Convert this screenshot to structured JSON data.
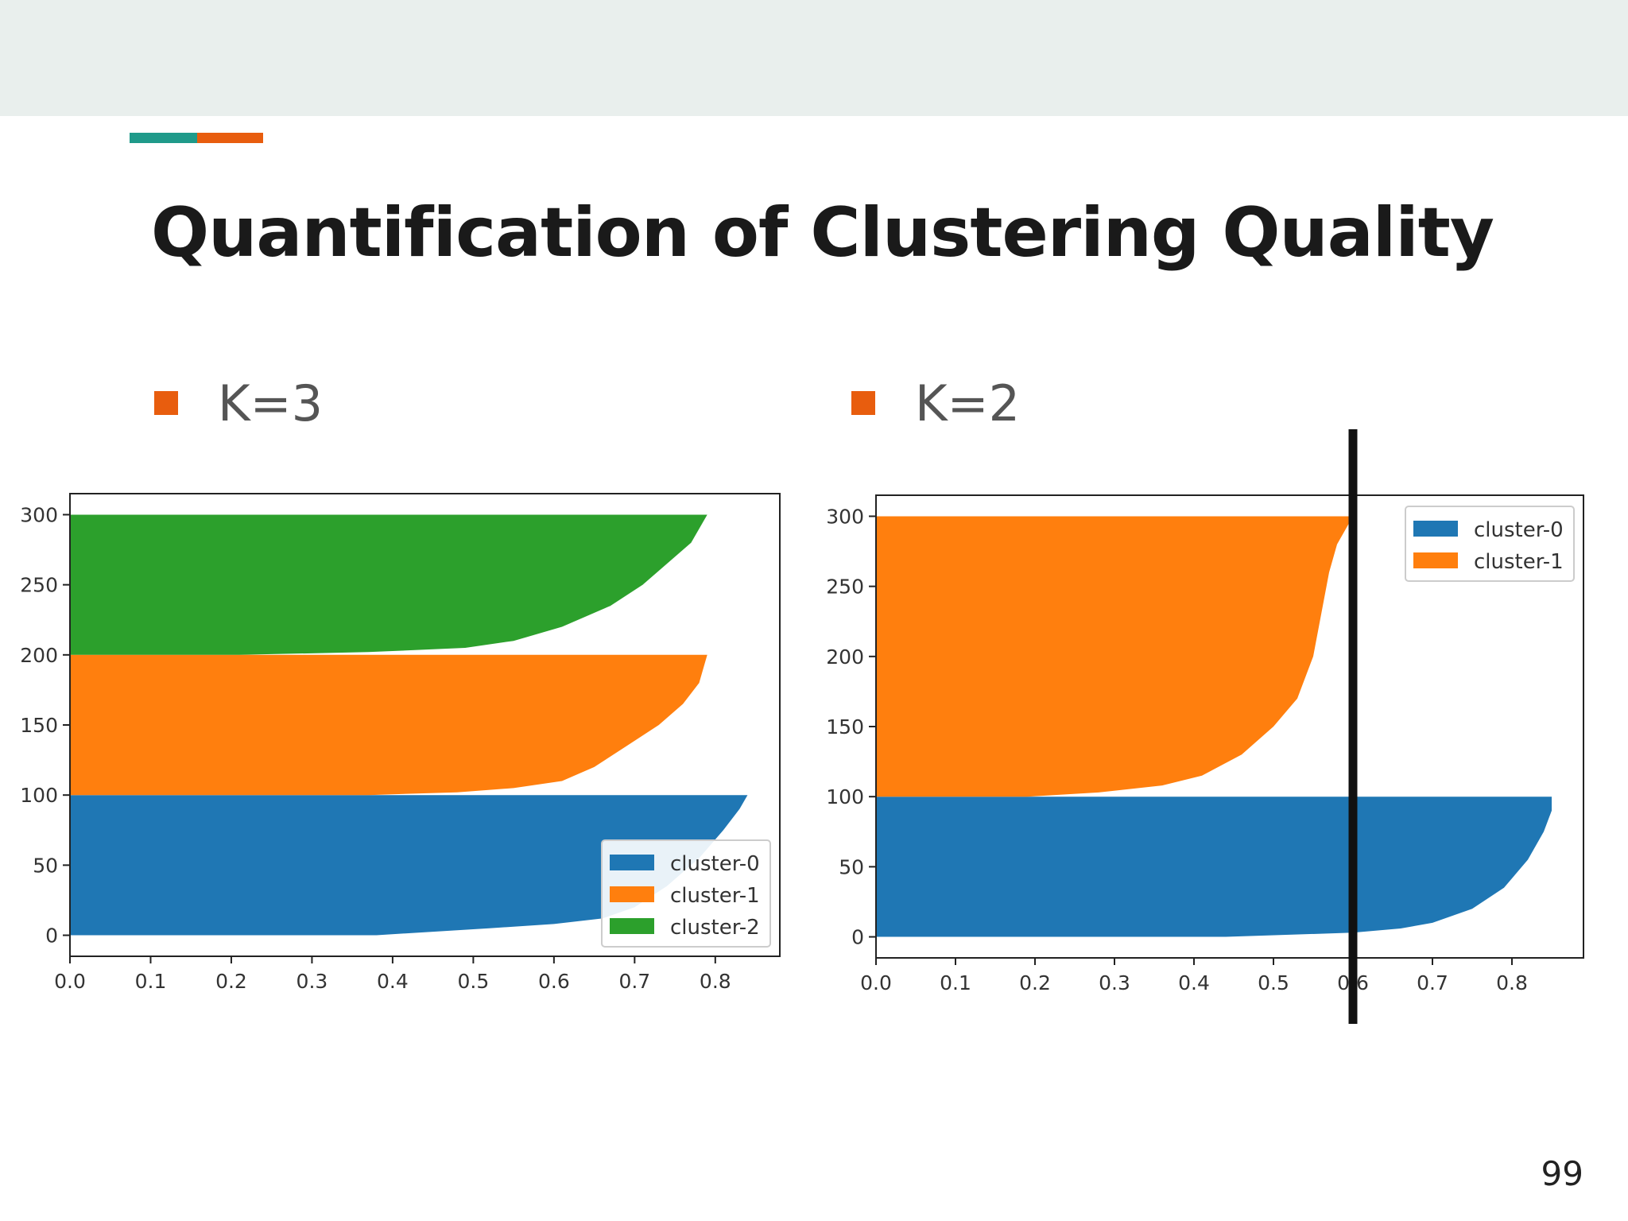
{
  "slide": {
    "title": "Quantification of Clustering Quality",
    "page_number": "99",
    "accent_colors": [
      "#1f9a8a",
      "#e85d0e"
    ],
    "bullets": [
      {
        "label": "K=3",
        "color": "#e85d0e"
      },
      {
        "label": "K=2",
        "color": "#e85d0e"
      }
    ]
  },
  "chart_data": [
    {
      "type": "bar",
      "orientation": "horizontal-silhouette",
      "xlim": [
        0,
        0.88
      ],
      "ylim": [
        -15,
        315
      ],
      "xticks": [
        "0.0",
        "0.1",
        "0.2",
        "0.3",
        "0.4",
        "0.5",
        "0.6",
        "0.7",
        "0.8"
      ],
      "yticks": [
        "0",
        "50",
        "100",
        "150",
        "200",
        "250",
        "300"
      ],
      "legend": {
        "position": "lower-right",
        "entries": [
          "cluster-0",
          "cluster-1",
          "cluster-2"
        ]
      },
      "series": [
        {
          "name": "cluster-0",
          "color": "#1f77b4",
          "profile": [
            [
              0,
              0.0
            ],
            [
              0,
              0.38
            ],
            [
              5,
              0.52
            ],
            [
              8,
              0.6
            ],
            [
              12,
              0.66
            ],
            [
              20,
              0.7
            ],
            [
              35,
              0.74
            ],
            [
              55,
              0.78
            ],
            [
              75,
              0.81
            ],
            [
              90,
              0.83
            ],
            [
              100,
              0.84
            ]
          ]
        },
        {
          "name": "cluster-1",
          "color": "#ff7f0e",
          "profile": [
            [
              100,
              0.0
            ],
            [
              100,
              0.37
            ],
            [
              102,
              0.48
            ],
            [
              105,
              0.55
            ],
            [
              110,
              0.61
            ],
            [
              120,
              0.65
            ],
            [
              135,
              0.69
            ],
            [
              150,
              0.73
            ],
            [
              165,
              0.76
            ],
            [
              180,
              0.78
            ],
            [
              200,
              0.79
            ]
          ]
        },
        {
          "name": "cluster-2",
          "color": "#2ca02c",
          "profile": [
            [
              200,
              0.0
            ],
            [
              200,
              0.21
            ],
            [
              202,
              0.37
            ],
            [
              205,
              0.49
            ],
            [
              210,
              0.55
            ],
            [
              220,
              0.61
            ],
            [
              235,
              0.67
            ],
            [
              250,
              0.71
            ],
            [
              265,
              0.74
            ],
            [
              280,
              0.77
            ],
            [
              300,
              0.79
            ]
          ]
        }
      ]
    },
    {
      "type": "bar",
      "orientation": "horizontal-silhouette",
      "xlim": [
        0,
        0.89
      ],
      "ylim": [
        -15,
        315
      ],
      "xticks": [
        "0.0",
        "0.1",
        "0.2",
        "0.3",
        "0.4",
        "0.5",
        "0.6",
        "0.7",
        "0.8"
      ],
      "yticks": [
        "0",
        "50",
        "100",
        "150",
        "200",
        "250",
        "300"
      ],
      "threshold_line": 0.6,
      "legend": {
        "position": "upper-right",
        "entries": [
          "cluster-0",
          "cluster-1"
        ]
      },
      "series": [
        {
          "name": "cluster-0",
          "color": "#1f77b4",
          "profile": [
            [
              0,
              0.0
            ],
            [
              0,
              0.44
            ],
            [
              3,
              0.6
            ],
            [
              6,
              0.66
            ],
            [
              10,
              0.7
            ],
            [
              20,
              0.75
            ],
            [
              35,
              0.79
            ],
            [
              55,
              0.82
            ],
            [
              75,
              0.84
            ],
            [
              90,
              0.85
            ],
            [
              100,
              0.85
            ]
          ]
        },
        {
          "name": "cluster-1",
          "color": "#ff7f0e",
          "profile": [
            [
              100,
              0.0
            ],
            [
              100,
              0.19
            ],
            [
              103,
              0.28
            ],
            [
              108,
              0.36
            ],
            [
              115,
              0.41
            ],
            [
              130,
              0.46
            ],
            [
              150,
              0.5
            ],
            [
              170,
              0.53
            ],
            [
              200,
              0.55
            ],
            [
              230,
              0.56
            ],
            [
              260,
              0.57
            ],
            [
              280,
              0.58
            ],
            [
              300,
              0.6
            ]
          ]
        }
      ]
    }
  ]
}
